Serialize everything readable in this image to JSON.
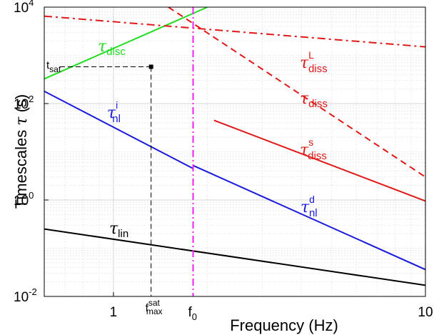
{
  "chart_data": {
    "type": "line",
    "x_scale": "log",
    "y_scale": "log",
    "xlim": [
      0.6,
      10
    ],
    "ylim": [
      0.01,
      10000
    ],
    "grid": true,
    "xlabel": "Frequency (Hz)",
    "ylabel": {
      "text": "Timescales",
      "symbol": "τ",
      "unit": "(s)"
    },
    "x_ticks": [
      {
        "value": 1,
        "label": "1"
      },
      {
        "value": 10,
        "label": "10"
      }
    ],
    "y_ticks": [
      {
        "value": 0.01,
        "base": "10",
        "exp": "-2"
      },
      {
        "value": 1,
        "base": "10",
        "exp": "0"
      },
      {
        "value": 100,
        "base": "10",
        "exp": "2"
      },
      {
        "value": 10000,
        "base": "10",
        "exp": "4"
      }
    ],
    "series": [
      {
        "label": {
          "symbol": "τ",
          "sub": "disc",
          "sup": ""
        },
        "color": "#22dd22",
        "style": "solid",
        "points": [
          [
            0.6,
            325
          ],
          [
            2.0,
            10000
          ]
        ]
      },
      {
        "label": {
          "symbol": "τ",
          "sub": "nl",
          "sup": "i"
        },
        "color": "#1a1adc",
        "style": "solid",
        "points": [
          [
            0.6,
            180
          ],
          [
            1.8,
            4.5
          ]
        ]
      },
      {
        "label": {
          "symbol": "τ",
          "sub": "nl",
          "sup": "d"
        },
        "color": "#1a1adc",
        "style": "solid",
        "points": [
          [
            1.8,
            5.2
          ],
          [
            10,
            0.036
          ]
        ]
      },
      {
        "label": {
          "symbol": "τ",
          "sub": "lin",
          "sup": ""
        },
        "color": "#000000",
        "style": "solid",
        "points": [
          [
            0.6,
            0.25
          ],
          [
            10,
            0.017
          ]
        ]
      },
      {
        "label": {
          "symbol": "τ",
          "sub": "diss",
          "sup": "L"
        },
        "color": "#e01818",
        "style": "dashdot",
        "points": [
          [
            0.6,
            6500
          ],
          [
            10,
            1500
          ]
        ]
      },
      {
        "label": {
          "symbol": "τ",
          "sub": "diss",
          "sup": ""
        },
        "color": "#e01818",
        "style": "dashed",
        "points": [
          [
            1.5,
            10000
          ],
          [
            10,
            3
          ]
        ]
      },
      {
        "label": {
          "symbol": "τ",
          "sub": "diss",
          "sup": "s"
        },
        "color": "#e01818",
        "style": "solid",
        "points": [
          [
            2.1,
            45
          ],
          [
            10,
            0.95
          ]
        ]
      }
    ],
    "annotations": {
      "f0": {
        "value": 1.8,
        "label": "f",
        "sub": "0",
        "color": "#ee22ee"
      },
      "saturation": {
        "f_max_sat": 1.32,
        "t_sat": 580,
        "f_label": {
          "base": "f",
          "sup": "sat",
          "sub": "max"
        },
        "t_label": {
          "base": "t",
          "sub": "sat"
        }
      }
    }
  }
}
